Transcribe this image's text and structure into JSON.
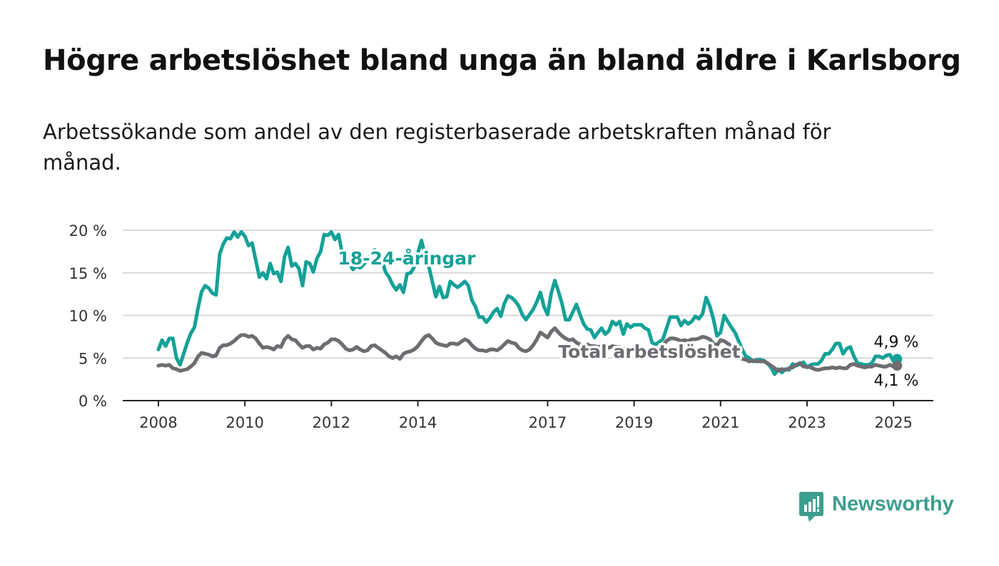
{
  "title": "Högre arbetslöshet bland unga än bland äldre i Karlsborg",
  "subtitle": "Arbetssökande som andel av den registerbaserade arbetskraften månad för månad.",
  "brand": {
    "name": "Newsworthy",
    "color": "#3d9e8e",
    "icon": "bar-chart-speech-bubble-icon"
  },
  "chart_data": {
    "type": "line",
    "x_start": "2008-01",
    "x_step": "month",
    "x_ticks": [
      "2008",
      "2010",
      "2012",
      "2014",
      "2017",
      "2019",
      "2021",
      "2023",
      "2025"
    ],
    "y_ticks": [
      "0 %",
      "5 %",
      "10 %",
      "15 %",
      "20 %"
    ],
    "ylim": [
      0,
      20
    ],
    "grid": true,
    "legend": "inline labels",
    "series": [
      {
        "name": "18-24-åringar",
        "color": "#15a197",
        "end_label": "4,9 %",
        "values": [
          6.0,
          7.1,
          6.4,
          7.3,
          7.3,
          5.0,
          4.2,
          5.5,
          6.8,
          7.9,
          8.6,
          10.9,
          12.8,
          13.5,
          13.2,
          12.6,
          12.4,
          17.2,
          18.4,
          19.1,
          19.0,
          19.8,
          19.2,
          19.8,
          19.3,
          18.2,
          18.5,
          16.5,
          14.5,
          15.0,
          14.3,
          16.1,
          14.9,
          15.1,
          14.0,
          16.9,
          18.0,
          15.8,
          16.1,
          15.5,
          13.5,
          16.3,
          16.1,
          15.1,
          16.7,
          17.5,
          19.5,
          19.4,
          19.8,
          18.9,
          19.5,
          17.3,
          16.4,
          16.0,
          15.4,
          15.8,
          15.6,
          16.0,
          16.6,
          17.1,
          17.7,
          17.5,
          16.6,
          15.1,
          14.5,
          13.6,
          13.0,
          13.6,
          12.7,
          14.9,
          15.0,
          15.7,
          17.3,
          18.8,
          17.0,
          15.8,
          14.0,
          12.2,
          13.4,
          12.1,
          12.2,
          14.0,
          13.6,
          13.3,
          13.6,
          14.0,
          13.5,
          11.8,
          11.0,
          9.8,
          9.8,
          9.2,
          9.7,
          10.4,
          10.8,
          9.9,
          11.4,
          12.3,
          12.1,
          11.7,
          11.1,
          10.1,
          9.5,
          10.1,
          10.7,
          11.6,
          12.7,
          11.0,
          10.1,
          12.6,
          14.1,
          12.8,
          11.4,
          9.5,
          9.5,
          10.4,
          11.3,
          10.1,
          9.0,
          8.4,
          8.3,
          7.4,
          8.0,
          8.5,
          7.8,
          8.2,
          9.3,
          8.9,
          9.3,
          7.8,
          9.0,
          8.6,
          8.9,
          8.9,
          8.9,
          8.5,
          8.3,
          6.8,
          6.6,
          6.9,
          7.2,
          8.5,
          9.8,
          9.8,
          9.8,
          8.8,
          9.4,
          9.0,
          9.3,
          9.9,
          9.6,
          10.2,
          12.1,
          11.1,
          9.6,
          7.6,
          8.0,
          10.0,
          9.3,
          8.6,
          8.0,
          7.0,
          6.0,
          5.2,
          5.0,
          4.6,
          4.8,
          4.8,
          4.7,
          4.4,
          3.9,
          3.1,
          3.7,
          3.3,
          3.7,
          3.6,
          4.3,
          4.1,
          4.3,
          4.5,
          3.9,
          4.2,
          4.3,
          4.3,
          4.7,
          5.5,
          5.5,
          6.0,
          6.7,
          6.7,
          5.5,
          6.1,
          6.3,
          5.2,
          4.4,
          4.3,
          4.2,
          4.2,
          4.4,
          5.2,
          5.2,
          5.0,
          5.3,
          5.4,
          4.6,
          4.9
        ]
      },
      {
        "name": "Total arbetslöshet",
        "color": "#6e6c71",
        "end_label": "4,1 %",
        "values": [
          4.1,
          4.2,
          4.1,
          4.2,
          3.8,
          3.7,
          3.5,
          3.6,
          3.7,
          4.0,
          4.4,
          5.2,
          5.6,
          5.5,
          5.4,
          5.2,
          5.3,
          6.2,
          6.5,
          6.5,
          6.7,
          7.0,
          7.4,
          7.7,
          7.7,
          7.5,
          7.6,
          7.3,
          6.7,
          6.2,
          6.3,
          6.2,
          6.0,
          6.4,
          6.3,
          7.2,
          7.6,
          7.2,
          7.1,
          6.6,
          6.2,
          6.4,
          6.4,
          6.0,
          6.2,
          6.1,
          6.6,
          6.8,
          7.2,
          7.2,
          7.0,
          6.6,
          6.1,
          5.9,
          6.0,
          6.3,
          6.0,
          5.8,
          5.9,
          6.4,
          6.5,
          6.2,
          5.9,
          5.6,
          5.2,
          5.0,
          5.2,
          4.9,
          5.5,
          5.7,
          5.8,
          6.0,
          6.4,
          7.0,
          7.5,
          7.7,
          7.3,
          6.8,
          6.6,
          6.5,
          6.4,
          6.7,
          6.7,
          6.6,
          6.9,
          7.2,
          7.0,
          6.5,
          6.1,
          5.9,
          5.9,
          5.8,
          6.0,
          6.0,
          5.9,
          6.2,
          6.6,
          7.0,
          6.8,
          6.7,
          6.2,
          5.9,
          5.8,
          6.0,
          6.5,
          7.2,
          8.0,
          7.7,
          7.4,
          8.1,
          8.5,
          8.0,
          7.6,
          7.3,
          7.1,
          7.2,
          6.8,
          6.6,
          6.4,
          6.6,
          6.4,
          6.4,
          6.3,
          6.4,
          6.2,
          6.2,
          6.4,
          6.3,
          6.3,
          6.1,
          6.2,
          6.1,
          6.1,
          6.1,
          6.0,
          6.0,
          5.9,
          5.8,
          5.9,
          6.0,
          6.5,
          7.0,
          7.3,
          7.3,
          7.2,
          7.0,
          7.1,
          7.0,
          7.2,
          7.2,
          7.3,
          7.5,
          7.4,
          7.2,
          6.7,
          6.5,
          7.1,
          7.0,
          6.7,
          6.4,
          5.9,
          5.4,
          4.9,
          4.8,
          4.6,
          4.7,
          4.6,
          4.6,
          4.6,
          4.4,
          4.1,
          3.8,
          3.5,
          3.7,
          3.6,
          3.8,
          3.9,
          4.2,
          4.4,
          4.0,
          4.0,
          3.9,
          3.7,
          3.6,
          3.7,
          3.8,
          3.8,
          3.9,
          3.8,
          3.9,
          3.8,
          3.8,
          4.2,
          4.3,
          4.1,
          4.0,
          3.9,
          4.0,
          4.0,
          4.2,
          4.1,
          4.0,
          4.0,
          4.2,
          4.0,
          4.1
        ]
      }
    ]
  }
}
